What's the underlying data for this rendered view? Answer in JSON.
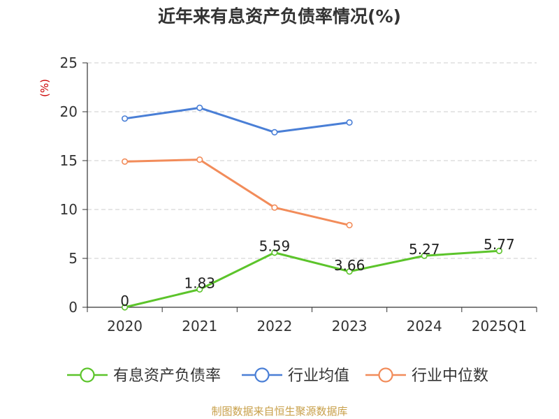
{
  "chart_data": {
    "type": "line",
    "title": "近年来有息资产负债率情况(%)",
    "ylabel": "(%)",
    "xlabel": "",
    "categories": [
      "2020",
      "2021",
      "2022",
      "2023",
      "2024",
      "2025Q1"
    ],
    "ylim": [
      0,
      25
    ],
    "yticks": [
      0,
      5,
      10,
      15,
      20,
      25
    ],
    "grid": true,
    "legend_position": "bottom",
    "series": [
      {
        "name": "有息资产负债率",
        "color": "#5cc42b",
        "values": [
          0,
          1.83,
          5.59,
          3.66,
          5.27,
          5.77
        ],
        "labels": [
          "0",
          "1.83",
          "5.59",
          "3.66",
          "5.27",
          "5.77"
        ]
      },
      {
        "name": "行业均值",
        "color": "#4a7fd6",
        "values": [
          19.3,
          20.4,
          17.9,
          18.9,
          null,
          null
        ]
      },
      {
        "name": "行业中位数",
        "color": "#f28c5a",
        "values": [
          14.9,
          15.1,
          10.2,
          8.4,
          null,
          null
        ]
      }
    ]
  },
  "footer": "制图数据来自恒生聚源数据库"
}
